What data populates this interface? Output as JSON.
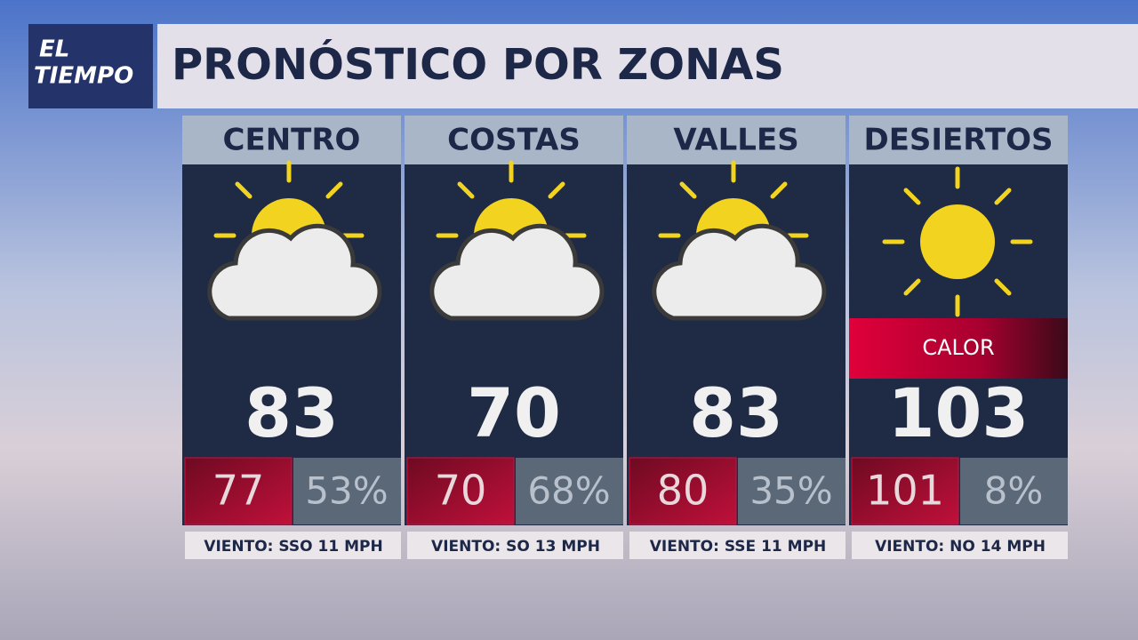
{
  "header": {
    "logo": [
      "EL",
      "TIEMPO"
    ],
    "title": "PRONÓSTICO POR ZONAS"
  },
  "zones": [
    {
      "name": "CENTRO",
      "temperature": "83",
      "feels_like": "77",
      "humidity": "53%",
      "wind": "VIENTO: SSO 11 MPH"
    },
    {
      "name": "COSTAS",
      "temperature": "70",
      "feels_like": "70",
      "humidity": "68%",
      "wind": "VIENTO: SO 13 MPH"
    },
    {
      "name": "VALLES",
      "temperature": "83",
      "feels_like": "80",
      "humidity": "35%",
      "wind": "VIENTO: SSE 11 MPH"
    },
    {
      "name": "DESIERTOS",
      "alert": "CALOR",
      "temperature": "103",
      "feels_like": "101",
      "humidity": "8%",
      "wind": "VIENTO: NO 14 MPH"
    }
  ]
}
